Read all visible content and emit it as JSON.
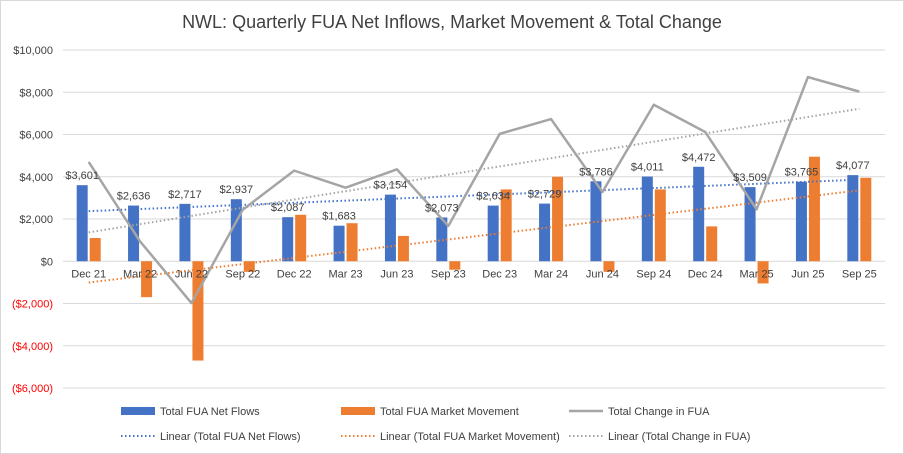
{
  "chart_data": {
    "type": "bar",
    "title": "NWL: Quarterly FUA Net Inflows, Market Movement & Total Change",
    "categories": [
      "Dec 21",
      "Mar 22",
      "Jun 22",
      "Sep 22",
      "Dec 22",
      "Mar 23",
      "Jun 23",
      "Sep 23",
      "Dec 23",
      "Mar 24",
      "Jun 24",
      "Sep 24",
      "Dec 24",
      "Mar 25",
      "Jun 25",
      "Sep 25"
    ],
    "ylim": [
      -6000,
      10000
    ],
    "yticks": [
      {
        "value": 10000,
        "label": "$10,000"
      },
      {
        "value": 8000,
        "label": "$8,000"
      },
      {
        "value": 6000,
        "label": "$6,000"
      },
      {
        "value": 4000,
        "label": "$4,000"
      },
      {
        "value": 2000,
        "label": "$2,000"
      },
      {
        "value": 0,
        "label": "$0"
      },
      {
        "value": -2000,
        "label": "($2,000)"
      },
      {
        "value": -4000,
        "label": "($4,000)"
      },
      {
        "value": -6000,
        "label": "($6,000)"
      }
    ],
    "grid": true,
    "legend_position": "bottom",
    "series": [
      {
        "name": "Total FUA Net Flows",
        "kind": "bar",
        "color": "#4472c4",
        "values": [
          3601,
          2636,
          2717,
          2937,
          2087,
          1683,
          3154,
          2073,
          2634,
          2729,
          3786,
          4011,
          4472,
          3509,
          3765,
          4077
        ],
        "labels": [
          "$3,601",
          "$2,636",
          "$2,717",
          "$2,937",
          "$2,087",
          "$1,683",
          "$3,154",
          "$2,073",
          "$2,634",
          "$2,729",
          "$3,786",
          "$4,011",
          "$4,472",
          "$3,509",
          "$3,765",
          "$4,077"
        ]
      },
      {
        "name": "Total FUA Market Movement",
        "kind": "bar",
        "color": "#ed7d31",
        "values": [
          1100,
          -1700,
          -4700,
          -500,
          2200,
          1800,
          1200,
          -400,
          3400,
          4000,
          -500,
          3400,
          1650,
          -1050,
          4950,
          3950
        ]
      },
      {
        "name": "Total Change in FUA",
        "kind": "line",
        "color": "#a5a5a5",
        "values": [
          4700,
          940,
          -1980,
          2440,
          4290,
          3480,
          4350,
          1670,
          6030,
          6730,
          3280,
          7410,
          6120,
          2460,
          8720,
          8030
        ]
      }
    ],
    "trendlines": [
      {
        "name": "Linear (Total FUA Net Flows)",
        "of": 0,
        "color": "#4472c4"
      },
      {
        "name": "Linear (Total FUA Market Movement)",
        "of": 1,
        "color": "#ed7d31"
      },
      {
        "name": "Linear (Total Change in FUA)",
        "of": 2,
        "color": "#a5a5a5"
      }
    ],
    "colors": {
      "negative_tick": "#ff0000",
      "tick": "#404040",
      "grid": "#d9d9d9"
    }
  }
}
